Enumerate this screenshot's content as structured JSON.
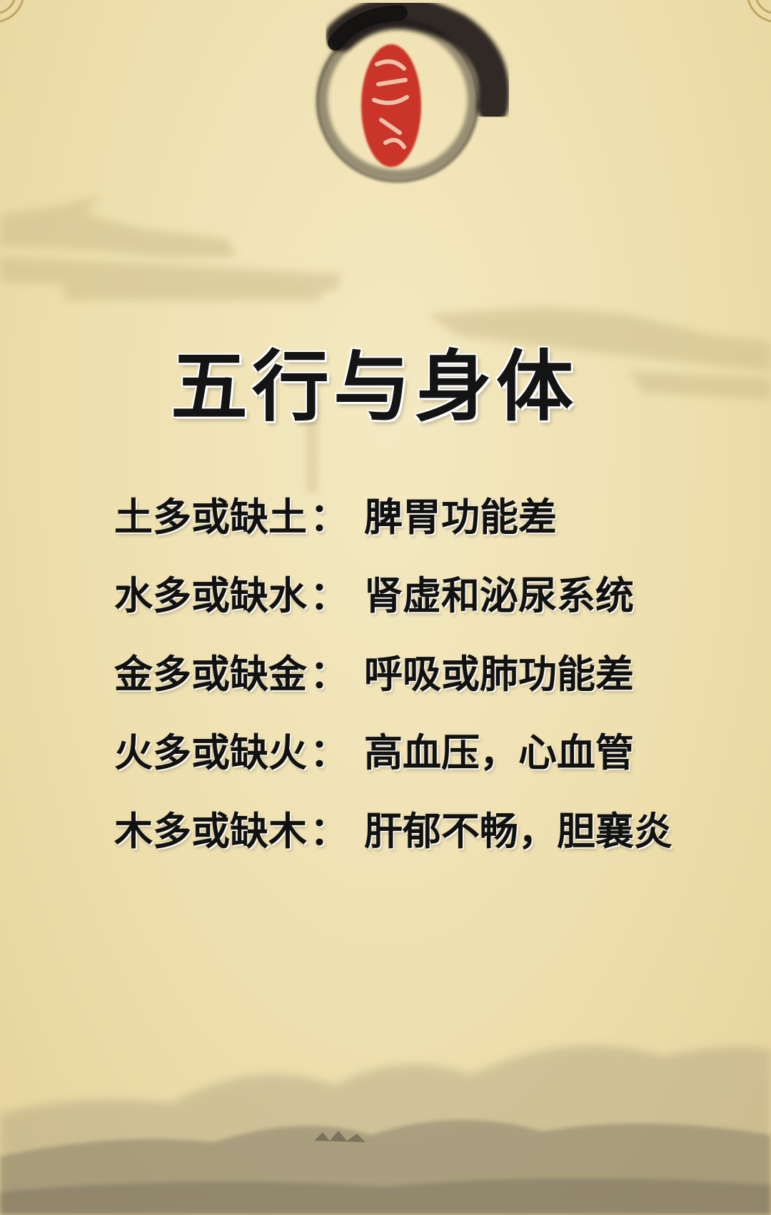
{
  "title": "五行与身体",
  "items": [
    {
      "label": "土多或缺土",
      "separator": "：",
      "desc": "脾胃功能差"
    },
    {
      "label": "水多或缺水",
      "separator": "：",
      "desc": "肾虚和泌尿系统"
    },
    {
      "label": "金多或缺金",
      "separator": "：",
      "desc": "呼吸或肺功能差"
    },
    {
      "label": "火多或缺火",
      "separator": "：",
      "desc": "高血压，心血管"
    },
    {
      "label": "木多或缺木",
      "separator": "：",
      "desc": "肝郁不畅，胆襄炎"
    }
  ],
  "decorations": {
    "seal": "red-seal-icon",
    "ink_circle": "ink-brush-circle-icon",
    "pavilion": "pavilion-roof-silhouette",
    "mountains": "ink-mountains-silhouette"
  },
  "colors": {
    "paper": "#efe2b4",
    "ink": "#141414",
    "seal_red": "#c8281e"
  }
}
